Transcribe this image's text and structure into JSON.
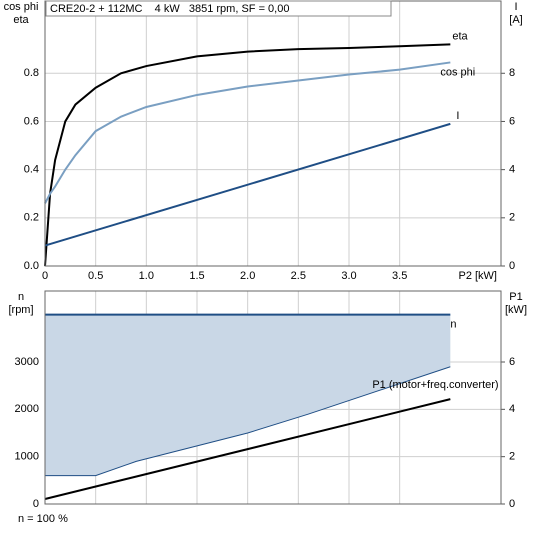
{
  "chart_data": [
    {
      "type": "line",
      "title": "CRE20-2 + 112MC    4 kW   3851 rpm, SF = 0,00",
      "ylabel": [
        "cos phi",
        "eta"
      ],
      "y2label": [
        "I",
        "[A]"
      ],
      "xlabel": "P2 [kW]",
      "xlim": [
        0,
        4.5
      ],
      "xticks": [
        0,
        0.5,
        {
          "value": 1,
          "label": "1.0"
        },
        1.5,
        {
          "value": 2,
          "label": "2.0"
        },
        2.5,
        {
          "value": 3,
          "label": "3.0"
        },
        3.5
      ],
      "ylim": [
        0,
        1.1
      ],
      "yticks": [
        {
          "value": 0,
          "label": "0.0"
        },
        0.2,
        0.4,
        0.6,
        0.8
      ],
      "y2lim": [
        0,
        11
      ],
      "y2ticks": [
        0,
        2,
        4,
        6,
        8
      ],
      "grid": true,
      "series": [
        {
          "name": "eta",
          "color": "#000000",
          "x": [
            0,
            0.05,
            0.1,
            0.2,
            0.3,
            0.5,
            0.75,
            1,
            1.5,
            2,
            2.5,
            3,
            3.5,
            4
          ],
          "values": [
            0,
            0.3,
            0.44,
            0.6,
            0.67,
            0.74,
            0.8,
            0.83,
            0.87,
            0.89,
            0.9,
            0.905,
            0.912,
            0.92
          ]
        },
        {
          "name": "cos phi",
          "color": "#7a9fc2",
          "x": [
            0,
            0.05,
            0.1,
            0.2,
            0.3,
            0.5,
            0.75,
            1,
            1.5,
            2,
            2.5,
            3,
            3.5,
            4
          ],
          "values": [
            0.26,
            0.3,
            0.33,
            0.4,
            0.46,
            0.56,
            0.62,
            0.66,
            0.71,
            0.745,
            0.77,
            0.795,
            0.815,
            0.845
          ]
        },
        {
          "name": "I",
          "color": "#1f4e85",
          "axis": "y2",
          "x": [
            0,
            4
          ],
          "values": [
            0.85,
            5.9
          ]
        }
      ]
    },
    {
      "type": "line",
      "note": "n = 100 %",
      "ylabel": [
        "n",
        "[rpm]"
      ],
      "y2label": [
        "P1",
        "[kW]"
      ],
      "xlim": [
        0,
        4.5
      ],
      "ylim": [
        0,
        4500
      ],
      "yticks": [
        0,
        1000,
        2000,
        3000
      ],
      "y2lim": [
        0,
        9
      ],
      "y2ticks": [
        0,
        2,
        4,
        6
      ],
      "grid": true,
      "series": [
        {
          "kind": "area",
          "color": "#c9d7e6",
          "x": [
            0,
            0.5,
            0.9,
            2,
            2.6,
            4
          ],
          "values": [
            600,
            600,
            900,
            1500,
            1900,
            2900
          ],
          "upper": [
            4000,
            4000,
            4000,
            4000,
            4000,
            4000
          ]
        },
        {
          "name": "n",
          "color": "#1f4e85",
          "x": [
            0,
            4
          ],
          "values": [
            4000,
            4000
          ]
        },
        {
          "name": "P1 (motor+freq.converter)",
          "color": "#000000",
          "axis": "y2",
          "x": [
            0,
            4
          ],
          "values": [
            0.21,
            4.43
          ]
        }
      ]
    }
  ]
}
